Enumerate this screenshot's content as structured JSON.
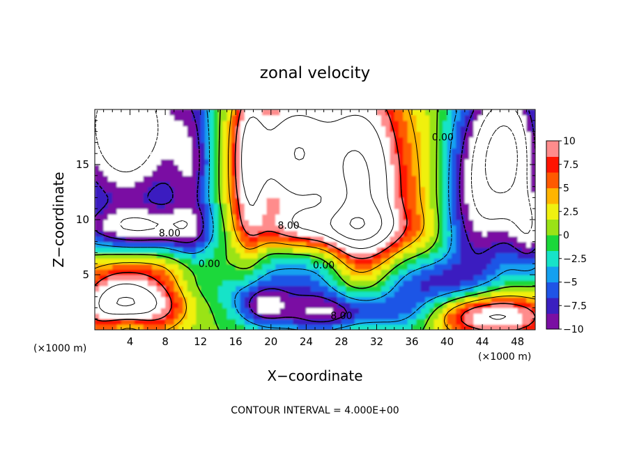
{
  "chart_data": {
    "type": "heatmap",
    "title": "zonal velocity",
    "xlabel": "X−coordinate",
    "ylabel": "Z−coordinate",
    "x_unit": "(×1000 m)",
    "y_unit": "(×1000 m)",
    "footer": "CONTOUR INTERVAL = 4.000E+00",
    "xlim": [
      0,
      50
    ],
    "ylim": [
      0,
      20
    ],
    "x_ticks": [
      4,
      8,
      12,
      16,
      20,
      24,
      28,
      32,
      36,
      40,
      44,
      48
    ],
    "x_tick_labels": [
      "4",
      "8",
      "12",
      "16",
      "20",
      "24",
      "28",
      "32",
      "36",
      "40",
      "44",
      "48"
    ],
    "y_ticks": [
      5,
      10,
      15
    ],
    "y_tick_labels": [
      "5",
      "10",
      "15"
    ],
    "colorbar": {
      "range": [
        -10,
        10
      ],
      "ticks": [
        10,
        7.5,
        5,
        2.5,
        0,
        -2.5,
        -5,
        -7.5,
        -10
      ],
      "tick_labels": [
        "10",
        "7.5",
        "5",
        "2.5",
        "0",
        "−2.5",
        "−5",
        "−7.5",
        "−10"
      ],
      "colors": [
        "#7a0fa3",
        "#3a1fc0",
        "#1f54e6",
        "#14a0f0",
        "#17e3c8",
        "#1ad83a",
        "#9ae316",
        "#f0f010",
        "#ffb400",
        "#ff5a00",
        "#ff1400",
        "#ff8c8c"
      ]
    },
    "contour_interval": 4.0,
    "contour_labels": [
      {
        "text": "8.00",
        "x": 8.5,
        "z": 8.8
      },
      {
        "text": "8.00",
        "x": 22.0,
        "z": 9.5
      },
      {
        "text": "0.00",
        "x": 13.0,
        "z": 6.0
      },
      {
        "text": "0.00",
        "x": 26.0,
        "z": 5.9
      },
      {
        "text": "0.00",
        "x": 39.5,
        "z": 17.5
      },
      {
        "text": "8.00",
        "x": 28.0,
        "z": 1.3
      }
    ]
  }
}
